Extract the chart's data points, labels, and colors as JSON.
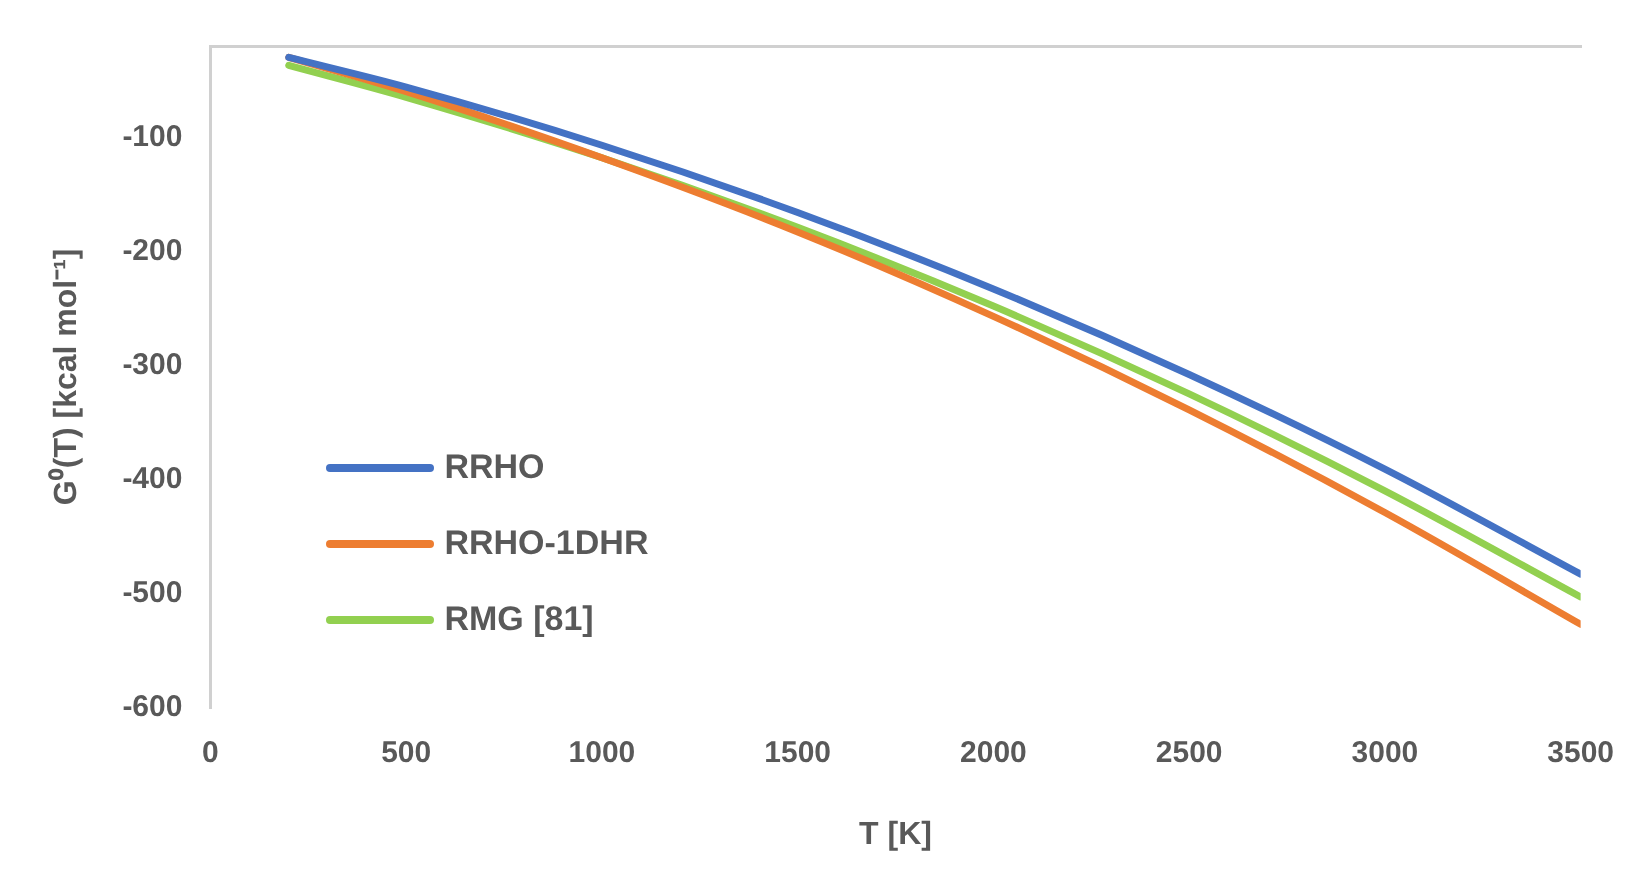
{
  "chart_data": {
    "type": "line",
    "xlabel": "T [K]",
    "ylabel": "G⁰(T) [kcal mol⁻¹]",
    "x": [
      200,
      500,
      1000,
      1500,
      2000,
      2500,
      3000,
      3500
    ],
    "series": [
      {
        "name": "RRHO",
        "color": "#4472c4",
        "values": [
          -30,
          -56,
          -107,
          -166,
          -233,
          -308,
          -391,
          -483
        ]
      },
      {
        "name": "RRHO-1DHR",
        "color": "#ed7d31",
        "values": [
          -30,
          -60,
          -118,
          -183,
          -257,
          -339,
          -429,
          -527
        ]
      },
      {
        "name": "RMG [81]",
        "color": "#92d050",
        "values": [
          -37,
          -65,
          -118,
          -179,
          -248,
          -325,
          -410,
          -503
        ]
      }
    ],
    "xlim": [
      0,
      3500
    ],
    "xticks": [
      0,
      500,
      1000,
      1500,
      2000,
      2500,
      3000,
      3500
    ],
    "ylim": [
      -600,
      -20
    ],
    "yticks": [
      -600,
      -500,
      -400,
      -300,
      -200,
      -100
    ],
    "grid": false,
    "legend": "bottom left",
    "marker": "none",
    "line_style": "solid"
  }
}
